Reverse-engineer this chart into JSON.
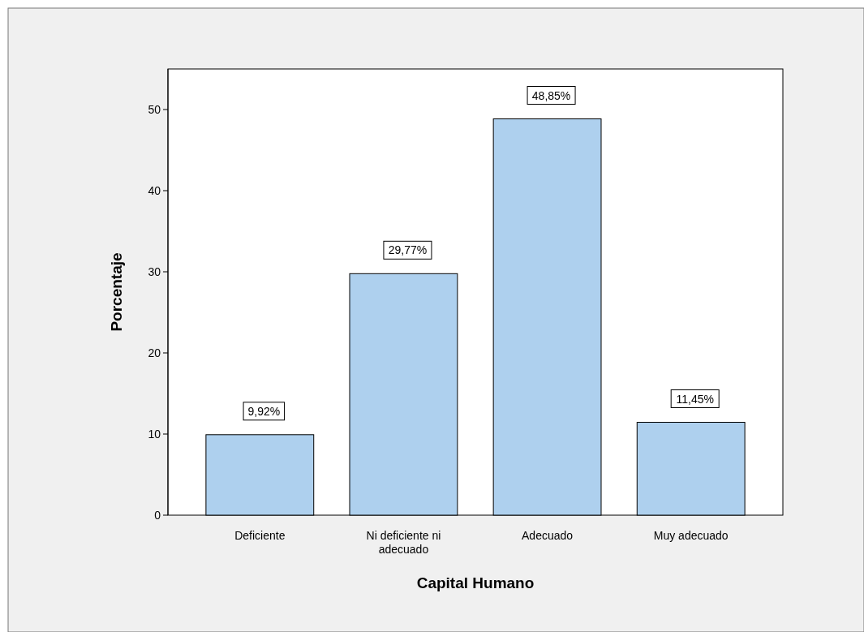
{
  "chart_data": {
    "type": "bar",
    "xlabel": "Capital Humano",
    "ylabel": "Porcentaje",
    "categories": [
      "Deficiente",
      "Ni deficiente ni adecuado",
      "Adecuado",
      "Muy adecuado"
    ],
    "values": [
      9.92,
      29.77,
      48.85,
      11.45
    ],
    "value_labels": [
      "9,92%",
      "29,77%",
      "48,85%",
      "11,45%"
    ],
    "color": "#aed0ee",
    "ylim": [
      0,
      55
    ],
    "yticks": [
      0,
      10,
      20,
      30,
      40,
      50
    ],
    "grid": false
  }
}
